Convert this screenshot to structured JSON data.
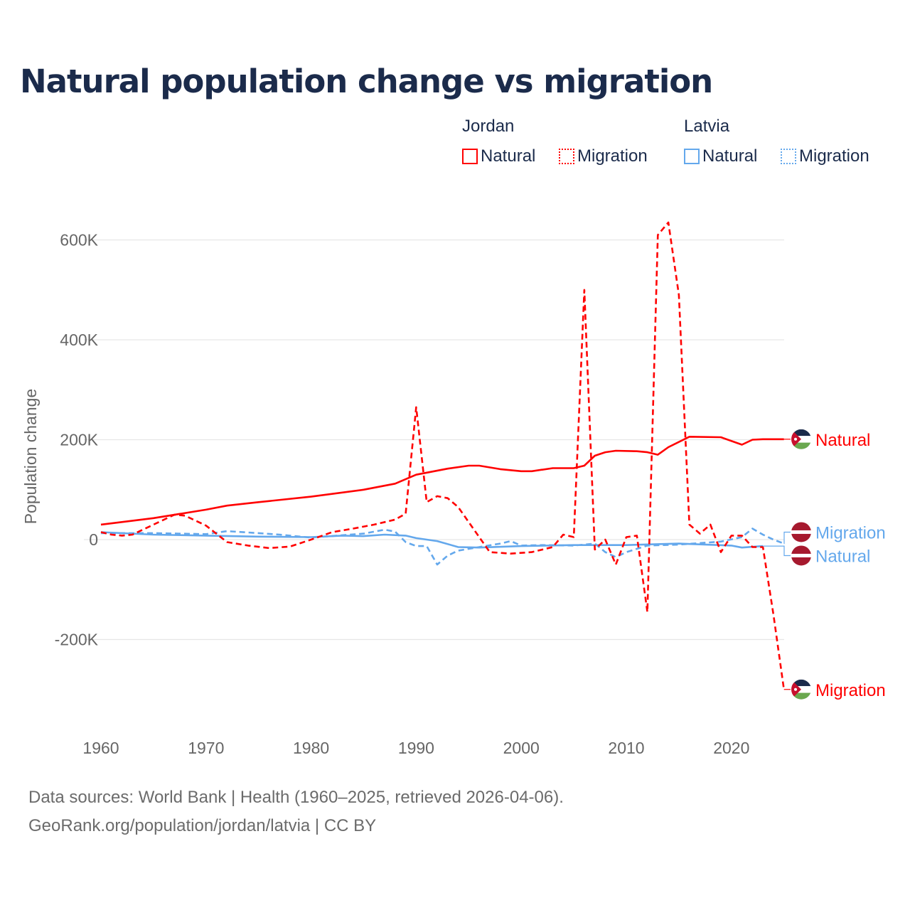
{
  "title": "Natural population change vs migration",
  "legend": {
    "groups": [
      {
        "name": "Jordan",
        "items": [
          {
            "label": "Natural",
            "style": "solid"
          },
          {
            "label": "Migration",
            "style": "dotted"
          }
        ],
        "color": "#ff0000"
      },
      {
        "name": "Latvia",
        "items": [
          {
            "label": "Natural",
            "style": "solid"
          },
          {
            "label": "Migration",
            "style": "dotted"
          }
        ],
        "color": "#64a8ec"
      }
    ]
  },
  "footer": {
    "line1": "Data sources: World Bank | Health (1960–2025, retrieved 2026-04-06).",
    "line2": "GeoRank.org/population/jordan/latvia | CC BY"
  },
  "chart_data": {
    "type": "line",
    "title": "Natural population change vs migration",
    "xlabel": "",
    "ylabel": "Population change",
    "xlim": [
      1960,
      2025
    ],
    "ylim": [
      -300000,
      640000
    ],
    "grid": true,
    "x_ticks": [
      1960,
      1970,
      1980,
      1990,
      2000,
      2010,
      2020
    ],
    "x_tick_labels": [
      "1960",
      "1970",
      "1980",
      "1990",
      "2000",
      "2010",
      "2020"
    ],
    "y_ticks": [
      -200000,
      0,
      200000,
      400000,
      600000
    ],
    "y_tick_labels": [
      "-200K",
      "0",
      "200K",
      "400K",
      "600K"
    ],
    "series": [
      {
        "name": "Jordan Natural",
        "country": "Jordan",
        "label": "Natural",
        "color": "#ff0000",
        "dash": false,
        "flag": "jordan-flag",
        "points": [
          [
            1960,
            30000
          ],
          [
            1965,
            43000
          ],
          [
            1970,
            60000
          ],
          [
            1972,
            68000
          ],
          [
            1975,
            75000
          ],
          [
            1980,
            86000
          ],
          [
            1985,
            100000
          ],
          [
            1988,
            112000
          ],
          [
            1990,
            130000
          ],
          [
            1993,
            142000
          ],
          [
            1995,
            148000
          ],
          [
            1996,
            148000
          ],
          [
            1998,
            141000
          ],
          [
            2000,
            137000
          ],
          [
            2001,
            137000
          ],
          [
            2003,
            143000
          ],
          [
            2005,
            143000
          ],
          [
            2006,
            148000
          ],
          [
            2007,
            168000
          ],
          [
            2008,
            175000
          ],
          [
            2009,
            178000
          ],
          [
            2011,
            177000
          ],
          [
            2012,
            175000
          ],
          [
            2013,
            170000
          ],
          [
            2014,
            185000
          ],
          [
            2016,
            206000
          ],
          [
            2019,
            205000
          ],
          [
            2021,
            190000
          ],
          [
            2022,
            200000
          ],
          [
            2023,
            201000
          ],
          [
            2025,
            201000
          ]
        ]
      },
      {
        "name": "Jordan Migration",
        "country": "Jordan",
        "label": "Migration",
        "color": "#ff0000",
        "dash": true,
        "flag": "jordan-flag",
        "points": [
          [
            1960,
            15000
          ],
          [
            1961,
            10000
          ],
          [
            1962,
            8000
          ],
          [
            1963,
            10000
          ],
          [
            1965,
            30000
          ],
          [
            1967,
            50000
          ],
          [
            1968,
            48000
          ],
          [
            1970,
            28000
          ],
          [
            1972,
            -5000
          ],
          [
            1974,
            -12000
          ],
          [
            1976,
            -17000
          ],
          [
            1978,
            -14000
          ],
          [
            1980,
            0
          ],
          [
            1982,
            15000
          ],
          [
            1984,
            22000
          ],
          [
            1986,
            30000
          ],
          [
            1988,
            40000
          ],
          [
            1989,
            52000
          ],
          [
            1990,
            265000
          ],
          [
            1991,
            75000
          ],
          [
            1992,
            87000
          ],
          [
            1993,
            83000
          ],
          [
            1994,
            65000
          ],
          [
            1995,
            35000
          ],
          [
            1996,
            5000
          ],
          [
            1997,
            -25000
          ],
          [
            1999,
            -28000
          ],
          [
            2001,
            -25000
          ],
          [
            2003,
            -15000
          ],
          [
            2004,
            10000
          ],
          [
            2005,
            5000
          ],
          [
            2006,
            500000
          ],
          [
            2007,
            -20000
          ],
          [
            2008,
            0
          ],
          [
            2009,
            -50000
          ],
          [
            2010,
            5000
          ],
          [
            2011,
            8000
          ],
          [
            2012,
            -145000
          ],
          [
            2013,
            610000
          ],
          [
            2014,
            635000
          ],
          [
            2015,
            490000
          ],
          [
            2016,
            30000
          ],
          [
            2017,
            12000
          ],
          [
            2018,
            30000
          ],
          [
            2019,
            -25000
          ],
          [
            2020,
            8000
          ],
          [
            2021,
            8000
          ],
          [
            2022,
            -15000
          ],
          [
            2023,
            -15000
          ],
          [
            2024,
            -150000
          ],
          [
            2025,
            -300000
          ]
        ]
      },
      {
        "name": "Latvia Natural",
        "country": "Latvia",
        "label": "Natural",
        "color": "#64a8ec",
        "dash": false,
        "flag": "latvia-flag",
        "points": [
          [
            1960,
            15000
          ],
          [
            1965,
            10000
          ],
          [
            1970,
            8000
          ],
          [
            1975,
            6000
          ],
          [
            1980,
            5000
          ],
          [
            1983,
            8000
          ],
          [
            1985,
            7000
          ],
          [
            1987,
            10000
          ],
          [
            1989,
            8000
          ],
          [
            1990,
            3000
          ],
          [
            1992,
            -3000
          ],
          [
            1994,
            -15000
          ],
          [
            1996,
            -16000
          ],
          [
            2000,
            -13000
          ],
          [
            2005,
            -11000
          ],
          [
            2010,
            -11000
          ],
          [
            2015,
            -8000
          ],
          [
            2020,
            -12000
          ],
          [
            2021,
            -16000
          ],
          [
            2023,
            -13000
          ]
        ]
      },
      {
        "name": "Latvia Migration",
        "country": "Latvia",
        "label": "Migration",
        "color": "#64a8ec",
        "dash": true,
        "flag": "latvia-flag",
        "points": [
          [
            1960,
            13000
          ],
          [
            1965,
            13000
          ],
          [
            1970,
            11000
          ],
          [
            1972,
            17000
          ],
          [
            1975,
            13000
          ],
          [
            1977,
            10000
          ],
          [
            1978,
            8000
          ],
          [
            1980,
            4000
          ],
          [
            1985,
            12000
          ],
          [
            1987,
            20000
          ],
          [
            1988,
            16000
          ],
          [
            1989,
            -5000
          ],
          [
            1990,
            -13000
          ],
          [
            1991,
            -13000
          ],
          [
            1992,
            -50000
          ],
          [
            1993,
            -32000
          ],
          [
            1994,
            -22000
          ],
          [
            1996,
            -15000
          ],
          [
            1998,
            -8000
          ],
          [
            1999,
            -3000
          ],
          [
            2000,
            -12000
          ],
          [
            2002,
            -11000
          ],
          [
            2005,
            -12000
          ],
          [
            2007,
            -8000
          ],
          [
            2008,
            -25000
          ],
          [
            2009,
            -35000
          ],
          [
            2010,
            -25000
          ],
          [
            2012,
            -12000
          ],
          [
            2015,
            -10000
          ],
          [
            2019,
            -4000
          ],
          [
            2021,
            5000
          ],
          [
            2022,
            22000
          ],
          [
            2023,
            10000
          ],
          [
            2024,
            0
          ],
          [
            2025,
            -8000
          ]
        ]
      }
    ]
  }
}
